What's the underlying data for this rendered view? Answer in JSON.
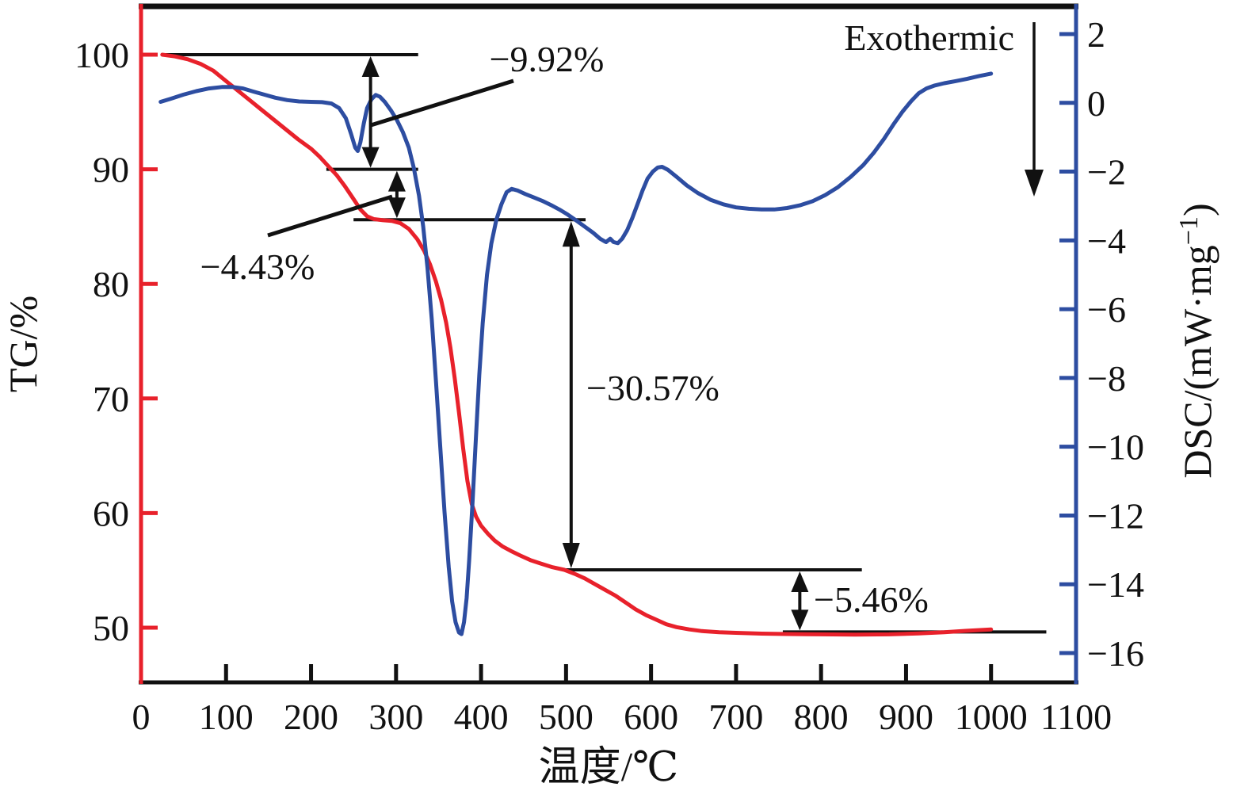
{
  "figure": {
    "exothermic_label": "Exothermic",
    "x_axis": {
      "title": "温度/℃",
      "ticks": [
        0,
        100,
        200,
        300,
        400,
        500,
        600,
        700,
        800,
        900,
        1000,
        1100
      ]
    },
    "tg_axis": {
      "title": "TG/%",
      "color": "#e8212b",
      "ticks": [
        100,
        90,
        80,
        70,
        60,
        50
      ]
    },
    "dsc_axis": {
      "title_main": "DSC/(mW·mg",
      "title_sup": "−1",
      "title_close": ")",
      "color": "#2d4da1",
      "ticks": [
        2,
        0,
        -2,
        -4,
        -6,
        -8,
        -10,
        -12,
        -14,
        -16
      ]
    }
  },
  "chart_data": {
    "type": "line",
    "title": "",
    "xlabel": "温度/℃",
    "x_range": [
      0,
      1100
    ],
    "tg_axis_range": [
      100,
      50
    ],
    "dsc_axis_range": [
      2,
      -16
    ],
    "grid": false,
    "series": [
      {
        "name": "TG",
        "axis": "TG/%",
        "color": "#e8212b",
        "points": [
          [
            25,
            100
          ],
          [
            40,
            99.85
          ],
          [
            55,
            99.6
          ],
          [
            70,
            99.2
          ],
          [
            85,
            98.6
          ],
          [
            100,
            97.7
          ],
          [
            110,
            97.1
          ],
          [
            125,
            96.2
          ],
          [
            140,
            95.3
          ],
          [
            155,
            94.4
          ],
          [
            170,
            93.5
          ],
          [
            185,
            92.6
          ],
          [
            200,
            91.8
          ],
          [
            210,
            91.1
          ],
          [
            220,
            90.3
          ],
          [
            230,
            89.5
          ],
          [
            240,
            88.5
          ],
          [
            250,
            87.4
          ],
          [
            258,
            86.5
          ],
          [
            266,
            85.9
          ],
          [
            274,
            85.65
          ],
          [
            285,
            85.55
          ],
          [
            295,
            85.5
          ],
          [
            305,
            85.3
          ],
          [
            315,
            84.8
          ],
          [
            325,
            83.9
          ],
          [
            333,
            82.9
          ],
          [
            340,
            81.7
          ],
          [
            347,
            80.2
          ],
          [
            353,
            78.6
          ],
          [
            359,
            76.6
          ],
          [
            364,
            74.4
          ],
          [
            369,
            71.8
          ],
          [
            374,
            68.8
          ],
          [
            379,
            65.6
          ],
          [
            384,
            62.8
          ],
          [
            389,
            60.8
          ],
          [
            394,
            59.7
          ],
          [
            400,
            58.9
          ],
          [
            408,
            58.2
          ],
          [
            416,
            57.6
          ],
          [
            425,
            57.1
          ],
          [
            435,
            56.7
          ],
          [
            446,
            56.3
          ],
          [
            458,
            55.9
          ],
          [
            470,
            55.6
          ],
          [
            483,
            55.3
          ],
          [
            498,
            55.05
          ],
          [
            510,
            54.7
          ],
          [
            522,
            54.3
          ],
          [
            534,
            53.8
          ],
          [
            546,
            53.3
          ],
          [
            558,
            52.8
          ],
          [
            570,
            52.2
          ],
          [
            582,
            51.6
          ],
          [
            594,
            51.1
          ],
          [
            606,
            50.7
          ],
          [
            618,
            50.3
          ],
          [
            630,
            50.05
          ],
          [
            645,
            49.85
          ],
          [
            660,
            49.7
          ],
          [
            680,
            49.6
          ],
          [
            700,
            49.55
          ],
          [
            730,
            49.48
          ],
          [
            760,
            49.45
          ],
          [
            800,
            49.42
          ],
          [
            840,
            49.4
          ],
          [
            880,
            49.42
          ],
          [
            915,
            49.5
          ],
          [
            945,
            49.6
          ],
          [
            970,
            49.72
          ],
          [
            1000,
            49.85
          ]
        ]
      },
      {
        "name": "DSC",
        "axis": "DSC/(mW·mg−1)",
        "color": "#2d4da1",
        "points": [
          [
            23,
            0.03
          ],
          [
            35,
            0.12
          ],
          [
            50,
            0.24
          ],
          [
            65,
            0.34
          ],
          [
            80,
            0.42
          ],
          [
            95,
            0.46
          ],
          [
            108,
            0.46
          ],
          [
            120,
            0.42
          ],
          [
            132,
            0.33
          ],
          [
            145,
            0.24
          ],
          [
            158,
            0.15
          ],
          [
            172,
            0.08
          ],
          [
            186,
            0.04
          ],
          [
            200,
            0.03
          ],
          [
            213,
            0.02
          ],
          [
            224,
            -0.02
          ],
          [
            233,
            -0.15
          ],
          [
            241,
            -0.45
          ],
          [
            247,
            -0.9
          ],
          [
            252,
            -1.3
          ],
          [
            255,
            -1.4
          ],
          [
            258,
            -1.15
          ],
          [
            262,
            -0.6
          ],
          [
            266,
            -0.15
          ],
          [
            271,
            0.1
          ],
          [
            276,
            0.23
          ],
          [
            281,
            0.18
          ],
          [
            287,
            0.02
          ],
          [
            294,
            -0.22
          ],
          [
            301,
            -0.5
          ],
          [
            308,
            -0.85
          ],
          [
            315,
            -1.3
          ],
          [
            321,
            -1.9
          ],
          [
            327,
            -2.7
          ],
          [
            332,
            -3.6
          ],
          [
            337,
            -4.8
          ],
          [
            342,
            -6.3
          ],
          [
            347,
            -8.1
          ],
          [
            352,
            -10.0
          ],
          [
            357,
            -11.9
          ],
          [
            362,
            -13.5
          ],
          [
            366,
            -14.5
          ],
          [
            370,
            -15.1
          ],
          [
            374,
            -15.4
          ],
          [
            377,
            -15.45
          ],
          [
            380,
            -15.1
          ],
          [
            383,
            -14.4
          ],
          [
            386,
            -13.3
          ],
          [
            390,
            -11.6
          ],
          [
            394,
            -9.7
          ],
          [
            398,
            -7.9
          ],
          [
            402,
            -6.4
          ],
          [
            407,
            -5.0
          ],
          [
            412,
            -4.1
          ],
          [
            418,
            -3.4
          ],
          [
            424,
            -2.95
          ],
          [
            430,
            -2.6
          ],
          [
            436,
            -2.5
          ],
          [
            443,
            -2.55
          ],
          [
            452,
            -2.65
          ],
          [
            462,
            -2.75
          ],
          [
            472,
            -2.85
          ],
          [
            482,
            -2.97
          ],
          [
            492,
            -3.1
          ],
          [
            502,
            -3.25
          ],
          [
            512,
            -3.42
          ],
          [
            522,
            -3.6
          ],
          [
            532,
            -3.78
          ],
          [
            540,
            -3.95
          ],
          [
            547,
            -4.05
          ],
          [
            552,
            -3.95
          ],
          [
            556,
            -4.05
          ],
          [
            561,
            -4.08
          ],
          [
            566,
            -3.95
          ],
          [
            572,
            -3.7
          ],
          [
            578,
            -3.35
          ],
          [
            584,
            -2.95
          ],
          [
            590,
            -2.55
          ],
          [
            596,
            -2.2
          ],
          [
            602,
            -2.0
          ],
          [
            608,
            -1.88
          ],
          [
            613,
            -1.86
          ],
          [
            620,
            -1.95
          ],
          [
            630,
            -2.15
          ],
          [
            642,
            -2.4
          ],
          [
            655,
            -2.62
          ],
          [
            670,
            -2.82
          ],
          [
            685,
            -2.95
          ],
          [
            700,
            -3.04
          ],
          [
            715,
            -3.08
          ],
          [
            730,
            -3.1
          ],
          [
            745,
            -3.1
          ],
          [
            760,
            -3.06
          ],
          [
            775,
            -2.98
          ],
          [
            790,
            -2.86
          ],
          [
            805,
            -2.68
          ],
          [
            820,
            -2.45
          ],
          [
            835,
            -2.15
          ],
          [
            850,
            -1.8
          ],
          [
            862,
            -1.45
          ],
          [
            874,
            -1.05
          ],
          [
            886,
            -0.6
          ],
          [
            896,
            -0.25
          ],
          [
            906,
            0.05
          ],
          [
            915,
            0.28
          ],
          [
            924,
            0.42
          ],
          [
            933,
            0.5
          ],
          [
            945,
            0.57
          ],
          [
            958,
            0.63
          ],
          [
            972,
            0.7
          ],
          [
            986,
            0.78
          ],
          [
            1000,
            0.85
          ]
        ]
      }
    ],
    "annotations": {
      "exothermic": {
        "label": "Exothermic",
        "direction": "down"
      },
      "mass_loss": [
        {
          "label": "−9.92%",
          "t": 270,
          "from_level": 100,
          "to_level": 90
        },
        {
          "label": "−4.43%",
          "t": 301,
          "from_level": 90,
          "to_level": 85.6
        },
        {
          "label": "−30.57%",
          "t": 506,
          "from_level": 85.6,
          "to_level": 55.05
        },
        {
          "label": "−5.46%",
          "t": 775,
          "from_level": 55.05,
          "to_level": 49.63
        }
      ],
      "ref_lines": [
        {
          "level": 100,
          "t_start": 25,
          "t_end": 326
        },
        {
          "level": 90,
          "t_start": 218,
          "t_end": 326
        },
        {
          "level": 85.6,
          "t_start": 250,
          "t_end": 523
        },
        {
          "level": 55.05,
          "t_start": 498,
          "t_end": 848
        },
        {
          "level": 49.63,
          "t_start": 755,
          "t_end": 1065
        }
      ]
    }
  }
}
